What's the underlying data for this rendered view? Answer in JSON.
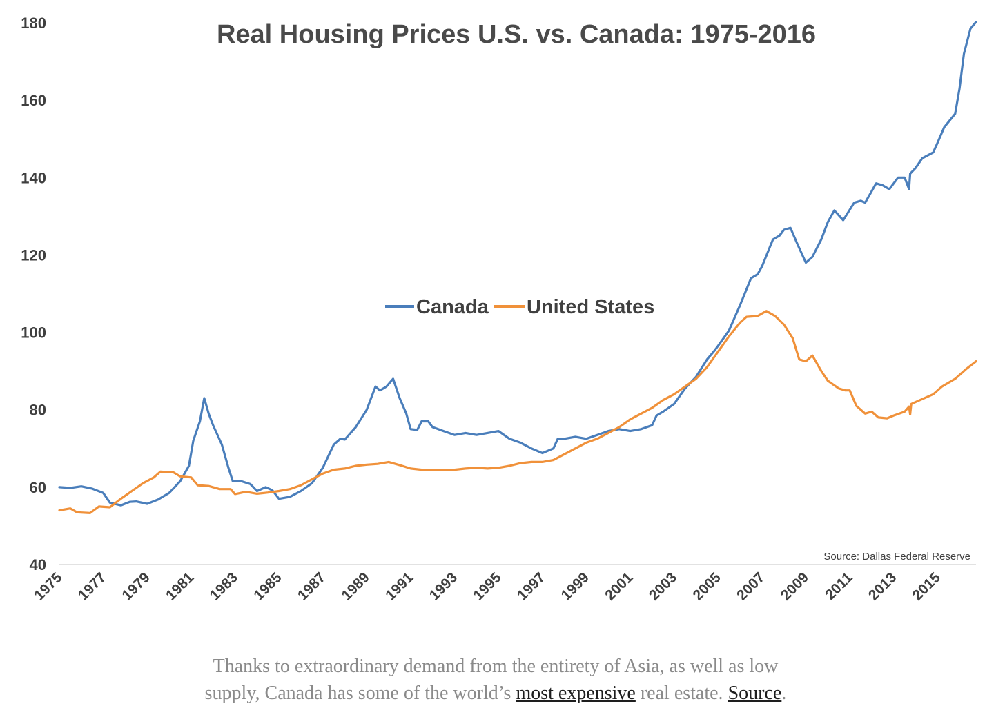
{
  "chart_data": {
    "type": "line",
    "title": "Real Housing Prices U.S. vs. Canada: 1975-2016",
    "xlabel": "",
    "ylabel": "",
    "ylim": [
      40,
      180
    ],
    "yticks": [
      "40",
      "60",
      "80",
      "100",
      "120",
      "140",
      "160",
      "180"
    ],
    "xticks": [
      "1975",
      "1977",
      "1979",
      "1981",
      "1983",
      "1985",
      "1987",
      "1989",
      "1991",
      "1993",
      "1995",
      "1997",
      "1999",
      "2001",
      "2003",
      "2005",
      "2007",
      "2009",
      "2011",
      "2013",
      "2015"
    ],
    "legend_position": "center",
    "grid": false,
    "source": "Source: Dallas Federal Reserve",
    "series": [
      {
        "name": "Canada",
        "color": "#4a7ebb",
        "points": [
          [
            1975.0,
            60.0
          ],
          [
            1975.5,
            59.8
          ],
          [
            1976.0,
            60.2
          ],
          [
            1976.5,
            59.6
          ],
          [
            1977.0,
            58.5
          ],
          [
            1977.3,
            56.0
          ],
          [
            1977.8,
            55.3
          ],
          [
            1978.2,
            56.2
          ],
          [
            1978.5,
            56.3
          ],
          [
            1979.0,
            55.7
          ],
          [
            1979.5,
            56.8
          ],
          [
            1980.0,
            58.5
          ],
          [
            1980.5,
            61.5
          ],
          [
            1980.9,
            65.5
          ],
          [
            1981.1,
            72.0
          ],
          [
            1981.4,
            77.0
          ],
          [
            1981.6,
            83.0
          ],
          [
            1981.8,
            79.0
          ],
          [
            1982.0,
            76.0
          ],
          [
            1982.4,
            71.0
          ],
          [
            1982.7,
            65.0
          ],
          [
            1982.9,
            61.5
          ],
          [
            1983.3,
            61.5
          ],
          [
            1983.7,
            60.8
          ],
          [
            1984.0,
            59.0
          ],
          [
            1984.4,
            60.0
          ],
          [
            1984.7,
            59.2
          ],
          [
            1985.0,
            57.0
          ],
          [
            1985.5,
            57.5
          ],
          [
            1986.0,
            59.0
          ],
          [
            1986.5,
            61.0
          ],
          [
            1987.0,
            65.0
          ],
          [
            1987.5,
            71.0
          ],
          [
            1987.8,
            72.5
          ],
          [
            1988.0,
            72.3
          ],
          [
            1988.5,
            75.5
          ],
          [
            1989.0,
            80.0
          ],
          [
            1989.4,
            86.0
          ],
          [
            1989.6,
            85.0
          ],
          [
            1989.9,
            86.0
          ],
          [
            1990.2,
            88.0
          ],
          [
            1990.5,
            83.0
          ],
          [
            1990.8,
            79.0
          ],
          [
            1991.0,
            75.0
          ],
          [
            1991.3,
            74.8
          ],
          [
            1991.5,
            77.0
          ],
          [
            1991.8,
            77.0
          ],
          [
            1992.0,
            75.5
          ],
          [
            1992.5,
            74.5
          ],
          [
            1993.0,
            73.5
          ],
          [
            1993.5,
            74.0
          ],
          [
            1994.0,
            73.5
          ],
          [
            1994.5,
            74.0
          ],
          [
            1995.0,
            74.5
          ],
          [
            1995.5,
            72.5
          ],
          [
            1996.0,
            71.5
          ],
          [
            1996.5,
            70.0
          ],
          [
            1997.0,
            68.8
          ],
          [
            1997.5,
            70.0
          ],
          [
            1997.7,
            72.5
          ],
          [
            1998.0,
            72.5
          ],
          [
            1998.5,
            73.0
          ],
          [
            1999.0,
            72.5
          ],
          [
            1999.5,
            73.5
          ],
          [
            2000.0,
            74.5
          ],
          [
            2000.5,
            75.0
          ],
          [
            2001.0,
            74.5
          ],
          [
            2001.5,
            75.0
          ],
          [
            2002.0,
            76.0
          ],
          [
            2002.2,
            78.5
          ],
          [
            2002.5,
            79.5
          ],
          [
            2003.0,
            81.5
          ],
          [
            2003.5,
            85.5
          ],
          [
            2004.0,
            88.5
          ],
          [
            2004.5,
            93.0
          ],
          [
            2004.8,
            95.0
          ],
          [
            2005.0,
            96.5
          ],
          [
            2005.5,
            100.5
          ],
          [
            2006.0,
            107.0
          ],
          [
            2006.5,
            114.0
          ],
          [
            2006.8,
            115.0
          ],
          [
            2007.0,
            117.0
          ],
          [
            2007.5,
            124.0
          ],
          [
            2007.8,
            125.0
          ],
          [
            2008.0,
            126.5
          ],
          [
            2008.3,
            127.0
          ],
          [
            2008.6,
            123.0
          ],
          [
            2009.0,
            118.0
          ],
          [
            2009.3,
            119.5
          ],
          [
            2009.7,
            124.0
          ],
          [
            2010.0,
            128.5
          ],
          [
            2010.3,
            131.5
          ],
          [
            2010.7,
            129.0
          ],
          [
            2011.2,
            133.5
          ],
          [
            2011.5,
            134.0
          ],
          [
            2011.7,
            133.5
          ],
          [
            2012.2,
            138.5
          ],
          [
            2012.5,
            138.0
          ],
          [
            2012.8,
            137.0
          ],
          [
            2013.2,
            140.0
          ],
          [
            2013.5,
            140.0
          ],
          [
            2013.7,
            137.0
          ],
          [
            2013.75,
            141.0
          ],
          [
            2014.0,
            142.5
          ],
          [
            2014.3,
            145.0
          ],
          [
            2014.8,
            146.5
          ],
          [
            2015.0,
            149.0
          ],
          [
            2015.3,
            153.0
          ],
          [
            2015.8,
            156.5
          ],
          [
            2016.0,
            163.0
          ],
          [
            2016.2,
            172.0
          ],
          [
            2016.5,
            178.5
          ],
          [
            2016.75,
            180.2
          ]
        ]
      },
      {
        "name": "United States",
        "color": "#f0913a",
        "points": [
          [
            1975.0,
            54.0
          ],
          [
            1975.5,
            54.5
          ],
          [
            1975.8,
            53.5
          ],
          [
            1976.4,
            53.3
          ],
          [
            1976.8,
            55.0
          ],
          [
            1977.3,
            54.8
          ],
          [
            1977.8,
            57.0
          ],
          [
            1978.3,
            59.0
          ],
          [
            1978.8,
            61.0
          ],
          [
            1979.3,
            62.5
          ],
          [
            1979.6,
            64.0
          ],
          [
            1980.2,
            63.8
          ],
          [
            1980.5,
            62.8
          ],
          [
            1981.0,
            62.5
          ],
          [
            1981.3,
            60.5
          ],
          [
            1981.8,
            60.3
          ],
          [
            1982.3,
            59.5
          ],
          [
            1982.8,
            59.5
          ],
          [
            1983.0,
            58.2
          ],
          [
            1983.5,
            58.8
          ],
          [
            1984.0,
            58.3
          ],
          [
            1984.5,
            58.6
          ],
          [
            1985.0,
            59.0
          ],
          [
            1985.5,
            59.5
          ],
          [
            1986.0,
            60.5
          ],
          [
            1986.5,
            62.0
          ],
          [
            1987.0,
            63.5
          ],
          [
            1987.5,
            64.5
          ],
          [
            1988.0,
            64.8
          ],
          [
            1988.5,
            65.5
          ],
          [
            1989.0,
            65.8
          ],
          [
            1989.5,
            66.0
          ],
          [
            1990.0,
            66.5
          ],
          [
            1990.5,
            65.7
          ],
          [
            1991.0,
            64.8
          ],
          [
            1991.5,
            64.5
          ],
          [
            1992.0,
            64.5
          ],
          [
            1992.5,
            64.5
          ],
          [
            1993.0,
            64.5
          ],
          [
            1993.5,
            64.8
          ],
          [
            1994.0,
            65.0
          ],
          [
            1994.5,
            64.8
          ],
          [
            1995.0,
            65.0
          ],
          [
            1995.5,
            65.5
          ],
          [
            1996.0,
            66.2
          ],
          [
            1996.5,
            66.5
          ],
          [
            1997.0,
            66.5
          ],
          [
            1997.5,
            67.0
          ],
          [
            1998.0,
            68.5
          ],
          [
            1998.5,
            70.0
          ],
          [
            1999.0,
            71.5
          ],
          [
            1999.5,
            72.5
          ],
          [
            2000.0,
            74.0
          ],
          [
            2000.5,
            75.5
          ],
          [
            2001.0,
            77.5
          ],
          [
            2001.5,
            79.0
          ],
          [
            2002.0,
            80.5
          ],
          [
            2002.5,
            82.5
          ],
          [
            2003.0,
            84.0
          ],
          [
            2003.5,
            86.0
          ],
          [
            2004.0,
            88.0
          ],
          [
            2004.5,
            91.0
          ],
          [
            2005.0,
            95.0
          ],
          [
            2005.5,
            99.0
          ],
          [
            2006.0,
            102.5
          ],
          [
            2006.3,
            104.0
          ],
          [
            2006.8,
            104.2
          ],
          [
            2007.2,
            105.5
          ],
          [
            2007.6,
            104.2
          ],
          [
            2008.0,
            102.0
          ],
          [
            2008.4,
            98.5
          ],
          [
            2008.7,
            93.0
          ],
          [
            2009.0,
            92.5
          ],
          [
            2009.3,
            94.0
          ],
          [
            2009.7,
            90.0
          ],
          [
            2010.0,
            87.5
          ],
          [
            2010.5,
            85.5
          ],
          [
            2010.8,
            85.0
          ],
          [
            2011.0,
            85.0
          ],
          [
            2011.3,
            81.0
          ],
          [
            2011.7,
            79.0
          ],
          [
            2012.0,
            79.5
          ],
          [
            2012.3,
            78.0
          ],
          [
            2012.7,
            77.8
          ],
          [
            2013.0,
            78.5
          ],
          [
            2013.5,
            79.5
          ],
          [
            2013.7,
            80.8
          ],
          [
            2013.75,
            78.8
          ],
          [
            2013.8,
            81.5
          ],
          [
            2014.2,
            82.5
          ],
          [
            2014.8,
            84.0
          ],
          [
            2015.2,
            86.0
          ],
          [
            2015.8,
            88.0
          ],
          [
            2016.3,
            90.5
          ],
          [
            2016.75,
            92.5
          ]
        ]
      }
    ]
  },
  "caption": {
    "line1": "Thanks to extraordinary demand from the entirety of Asia, as well as low",
    "line2_pre": "supply, Canada has some of the world’s ",
    "link1": "most expensive",
    "line2_mid": " real estate. ",
    "link2": "Source",
    "line2_post": "."
  }
}
